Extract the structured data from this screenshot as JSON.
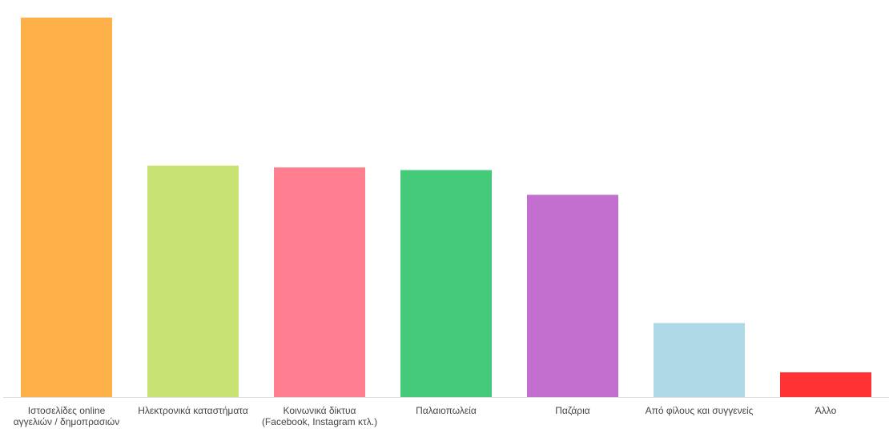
{
  "chart_data": {
    "type": "bar",
    "categories": [
      [
        "Ιστοσελίδες online",
        "αγγελιών / δημοπρασιών"
      ],
      [
        "Ηλεκτρονικά καταστήματα"
      ],
      [
        "Κοινωνικά δίκτυα",
        "(Facebook, Instagram κτλ.)"
      ],
      [
        "Παλαιοπωλεία"
      ],
      [
        "Παζάρια"
      ],
      [
        "Από φίλους και συγγενείς"
      ],
      [
        "Άλλο"
      ]
    ],
    "values": [
      100,
      61,
      60.5,
      59.8,
      53.3,
      19.5,
      6.5
    ],
    "ylim": [
      0,
      100
    ],
    "colors": [
      "#FDB148",
      "#C8E273",
      "#FF7E8F",
      "#45CA7A",
      "#C36FD0",
      "#ADD8E6",
      "#FF3333"
    ],
    "grid": false,
    "legend": "none"
  }
}
